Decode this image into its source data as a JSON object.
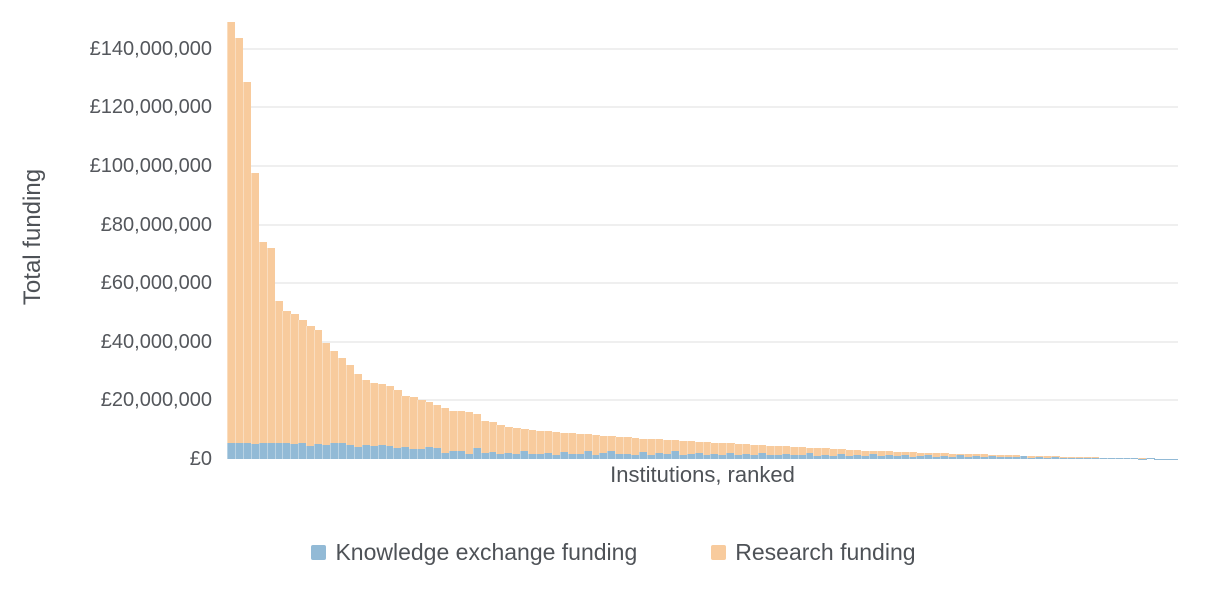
{
  "chart_data": {
    "type": "bar",
    "stacked": true,
    "xlabel": "Institutions, ranked",
    "ylabel": "Total funding",
    "ylim": [
      0,
      151500000
    ],
    "grid": "horizontal-light",
    "legend_position": "bottom-center",
    "background_color": "#ffffff",
    "gridline_color": "#efefef",
    "text_color": "#4e5257",
    "y_ticks": [
      {
        "label": "£0",
        "value": 0
      },
      {
        "label": "£20,000,000",
        "value": 20000000
      },
      {
        "label": "£40,000,000",
        "value": 40000000
      },
      {
        "label": "£60,000,000",
        "value": 60000000
      },
      {
        "label": "£80,000,000",
        "value": 80000000
      },
      {
        "label": "£100,000,000",
        "value": 100000000
      },
      {
        "label": "£120,000,000",
        "value": 120000000
      },
      {
        "label": "£140,000,000",
        "value": 140000000
      }
    ],
    "x_categories_note": "120 unnamed institutions ranked by total funding, descending",
    "series": [
      {
        "name": "Knowledge exchange funding",
        "color": "#92bad6",
        "values": [
          5500000,
          5500000,
          5400000,
          5200000,
          5400000,
          5300000,
          5500000,
          5400000,
          5200000,
          5300000,
          4300000,
          5100000,
          4700000,
          5500000,
          5500000,
          4700000,
          4000000,
          4700000,
          4300000,
          4900000,
          4300000,
          3900000,
          4200000,
          3500000,
          3500000,
          4000000,
          3900000,
          2200000,
          2800000,
          2600000,
          1700000,
          3900000,
          2000000,
          2500000,
          1800000,
          2200000,
          1600000,
          2800000,
          1800000,
          1600000,
          2100000,
          1500000,
          2500000,
          1600000,
          1800000,
          2900000,
          1500000,
          2200000,
          2800000,
          1600000,
          1800000,
          1500000,
          2400000,
          1500000,
          1900000,
          1600000,
          2600000,
          1500000,
          1800000,
          2200000,
          1400000,
          1700000,
          1400000,
          2100000,
          1500000,
          1800000,
          1300000,
          2000000,
          1400000,
          1200000,
          1700000,
          1200000,
          1400000,
          1900000,
          1100000,
          1300000,
          1000000,
          1600000,
          1100000,
          1300000,
          900000,
          1800000,
          1000000,
          1200000,
          900000,
          1400000,
          800000,
          1000000,
          1300000,
          800000,
          1000000,
          700000,
          1200000,
          800000,
          900000,
          600000,
          1000000,
          700000,
          800000,
          600000,
          900000,
          500000,
          700000,
          500000,
          600000,
          400000,
          500000,
          350000,
          400000,
          300000,
          350000,
          250000,
          300000,
          200000,
          250000,
          150000,
          200000,
          120000,
          100000,
          80000
        ]
      },
      {
        "name": "Research funding",
        "color": "#f8cb9d",
        "values": [
          143500000,
          138000000,
          123100000,
          92300000,
          68600000,
          66700000,
          48500000,
          45100000,
          44300000,
          42200000,
          41200000,
          38900000,
          34800000,
          31500000,
          29000000,
          27300000,
          25000000,
          22300000,
          21700000,
          20600000,
          20700000,
          19600000,
          17300000,
          17500000,
          16500000,
          15500000,
          14600000,
          15300000,
          13700000,
          13700000,
          14300000,
          11600000,
          11000000,
          10000000,
          9700000,
          8800000,
          9000000,
          7500000,
          8200000,
          8100000,
          7300000,
          7700000,
          6500000,
          7200000,
          6800000,
          5500000,
          6700000,
          5800000,
          5000000,
          6000000,
          5600000,
          5700000,
          4600000,
          5400000,
          4800000,
          4900000,
          3800000,
          4700000,
          4300000,
          3700000,
          4400000,
          3900000,
          4100000,
          3300000,
          3700000,
          3300000,
          3600000,
          2800000,
          3200000,
          3300000,
          2600000,
          3000000,
          2600000,
          2000000,
          2600000,
          2300000,
          2400000,
          1700000,
          2100000,
          1700000,
          2000000,
          1000000,
          1700000,
          1400000,
          1600000,
          1000000,
          1500000,
          1200000,
          800000,
          1200000,
          900000,
          1100000,
          550000,
          900000,
          700000,
          950000,
          500000,
          750000,
          600000,
          700000,
          300000,
          600000,
          300000,
          450000,
          300000,
          400000,
          250000,
          350000,
          200000,
          250000,
          150000,
          200000,
          100000,
          150000,
          50000,
          100000,
          0,
          30000,
          20000,
          20000
        ]
      }
    ]
  }
}
